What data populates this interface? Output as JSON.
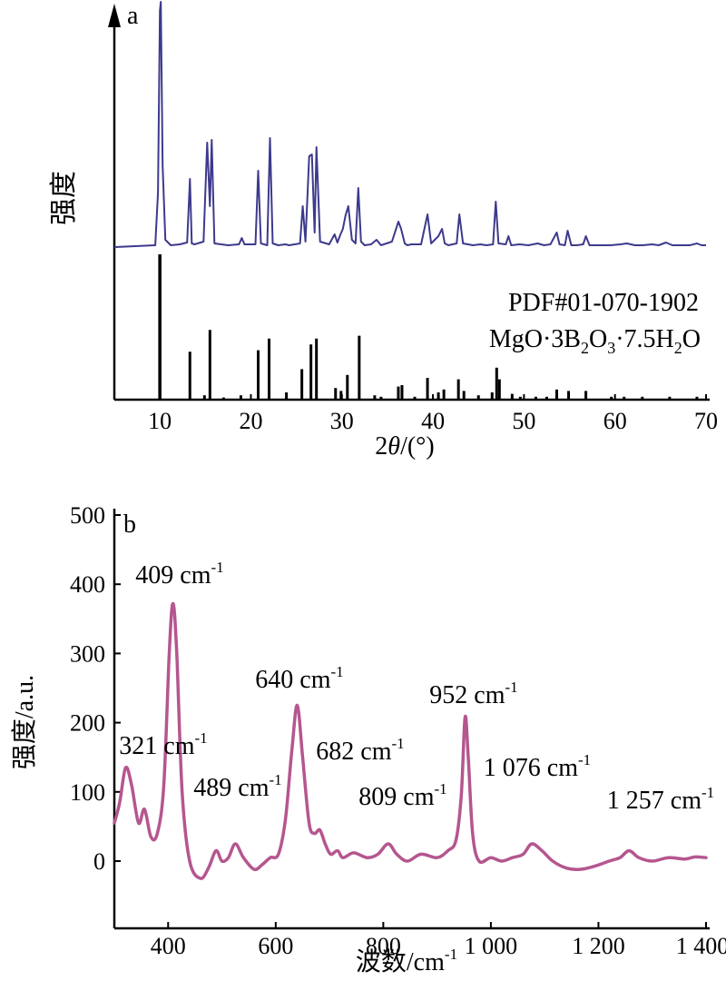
{
  "chart_data": [
    {
      "panel": "a",
      "type": "line",
      "xlabel_prefix": "2",
      "xlabel_var": "θ",
      "xlabel_suffix": "/(°)",
      "ylabel": "强度",
      "xlim": [
        5,
        70
      ],
      "xticks": [
        10,
        20,
        30,
        40,
        50,
        60,
        70
      ],
      "y_ticks_shown": false,
      "line_color": "#3d3a8c",
      "ref_color": "#000000",
      "series": [
        {
          "x": [
            5,
            9.5,
            9.8,
            10.0,
            10.1,
            10.3,
            10.6,
            11.2,
            12.2,
            13.0,
            13.3,
            13.5,
            13.8,
            14.8,
            15.2,
            15.5,
            15.7,
            16.0,
            17.5,
            18.7,
            19.0,
            19.3,
            20.5,
            20.8,
            21.1,
            21.8,
            22.1,
            22.4,
            23.0,
            23.8,
            24.2,
            25.4,
            25.7,
            26.0,
            26.4,
            26.7,
            27.0,
            27.2,
            27.6,
            28.6,
            29.2,
            29.5,
            29.8,
            30.1,
            30.4,
            30.7,
            31.1,
            31.5,
            31.8,
            32.1,
            32.5,
            33.2,
            33.8,
            34.3,
            35.5,
            36.2,
            36.5,
            36.9,
            37.2,
            37.6,
            38.7,
            39.4,
            39.8,
            40.6,
            41.0,
            41.3,
            41.7,
            42.6,
            42.9,
            43.3,
            44.4,
            45.2,
            45.9,
            46.6,
            46.9,
            47.2,
            48.0,
            48.3,
            48.6,
            49.5,
            50.5,
            51.5,
            52.2,
            52.9,
            53.6,
            53.9,
            54.5,
            54.8,
            55.2,
            55.8,
            56.5,
            56.8,
            57.2,
            58.0,
            59.5,
            60.6,
            61.3,
            62.2,
            63.0,
            64.1,
            64.8,
            65.6,
            66.3,
            67.0,
            68.2,
            69.0,
            69.5,
            70.0
          ],
          "y": [
            0,
            2,
            60,
            260,
            270,
            90,
            8,
            2,
            3,
            5,
            75,
            4,
            3,
            6,
            115,
            45,
            118,
            4,
            2,
            3,
            10,
            3,
            3,
            84,
            4,
            2,
            120,
            4,
            2,
            3,
            2,
            4,
            45,
            6,
            100,
            102,
            16,
            110,
            6,
            3,
            14,
            5,
            13,
            20,
            35,
            45,
            8,
            4,
            65,
            6,
            2,
            3,
            8,
            2,
            6,
            28,
            20,
            4,
            2,
            3,
            3,
            36,
            4,
            12,
            20,
            4,
            2,
            4,
            36,
            4,
            2,
            3,
            2,
            3,
            50,
            4,
            3,
            12,
            2,
            3,
            2,
            4,
            2,
            3,
            16,
            3,
            2,
            18,
            2,
            2,
            3,
            12,
            2,
            2,
            2,
            3,
            4,
            2,
            2,
            3,
            2,
            5,
            2,
            2,
            2,
            4,
            2,
            2
          ]
        }
      ],
      "reference": {
        "label_line1": "PDF#01-070-1902",
        "formula_parts": [
          "MgO·3B",
          "2",
          "O",
          "3",
          "·7.5H",
          "2",
          "O"
        ],
        "sticks": [
          [
            10.0,
            100
          ],
          [
            13.3,
            33
          ],
          [
            14.9,
            3
          ],
          [
            15.5,
            48
          ],
          [
            17.0,
            1.5
          ],
          [
            18.9,
            3
          ],
          [
            20.8,
            34
          ],
          [
            22.0,
            42
          ],
          [
            23.9,
            5
          ],
          [
            25.6,
            21
          ],
          [
            26.6,
            38
          ],
          [
            27.2,
            42
          ],
          [
            29.3,
            8
          ],
          [
            29.9,
            6
          ],
          [
            30.6,
            17
          ],
          [
            31.9,
            44
          ],
          [
            33.6,
            3
          ],
          [
            34.3,
            2
          ],
          [
            36.2,
            9
          ],
          [
            36.6,
            10
          ],
          [
            38.0,
            2
          ],
          [
            39.4,
            15
          ],
          [
            40.6,
            5
          ],
          [
            41.2,
            7
          ],
          [
            42.8,
            14
          ],
          [
            43.4,
            6
          ],
          [
            45.0,
            3
          ],
          [
            46.5,
            5
          ],
          [
            47.0,
            22
          ],
          [
            47.3,
            14
          ],
          [
            48.7,
            4
          ],
          [
            49.6,
            2
          ],
          [
            51.3,
            2
          ],
          [
            52.5,
            2
          ],
          [
            53.6,
            7
          ],
          [
            54.9,
            6
          ],
          [
            56.8,
            6
          ],
          [
            59.6,
            2
          ],
          [
            61.0,
            2
          ],
          [
            63.0,
            2
          ],
          [
            66.0,
            2
          ],
          [
            69.0,
            2
          ]
        ]
      }
    },
    {
      "panel": "b",
      "type": "line",
      "xlabel": "波数/cm",
      "xlabel_sup": "-1",
      "ylabel": "强度/a.u.",
      "xlim": [
        300,
        1400
      ],
      "ylim": [
        -30,
        500
      ],
      "xticks": [
        400,
        600,
        800,
        1000,
        1200,
        1400
      ],
      "xtick_labels": [
        "400",
        "600",
        "800",
        "1 000",
        "1 200",
        "1 400"
      ],
      "yticks": [
        0,
        100,
        200,
        300,
        400,
        500
      ],
      "line_color": "#b5568f",
      "series": [
        {
          "x": [
            300,
            310,
            321,
            332,
            345,
            356,
            368,
            380,
            392,
            402,
            409,
            416,
            426,
            440,
            460,
            475,
            489,
            500,
            512,
            525,
            540,
            560,
            575,
            590,
            605,
            618,
            630,
            640,
            650,
            662,
            672,
            682,
            692,
            702,
            715,
            725,
            745,
            770,
            790,
            809,
            825,
            845,
            870,
            900,
            920,
            935,
            945,
            952,
            958,
            966,
            978,
            1000,
            1020,
            1040,
            1060,
            1076,
            1095,
            1115,
            1140,
            1165,
            1190,
            1220,
            1240,
            1257,
            1275,
            1300,
            1330,
            1360,
            1380,
            1400
          ],
          "y": [
            55,
            85,
            135,
            110,
            55,
            75,
            35,
            40,
            110,
            300,
            372,
            300,
            100,
            0,
            -25,
            -10,
            15,
            0,
            5,
            25,
            5,
            -12,
            -5,
            5,
            10,
            60,
            160,
            225,
            150,
            55,
            40,
            45,
            25,
            10,
            15,
            5,
            12,
            5,
            10,
            25,
            10,
            0,
            10,
            5,
            15,
            30,
            95,
            208,
            150,
            40,
            0,
            5,
            0,
            5,
            10,
            25,
            15,
            0,
            -10,
            -12,
            -8,
            0,
            5,
            15,
            5,
            0,
            5,
            3,
            6,
            5
          ]
        }
      ],
      "annotations": [
        {
          "text": "321 cm",
          "sup": "-1"
        },
        {
          "text": "409 cm",
          "sup": "-1"
        },
        {
          "text": "489 cm",
          "sup": "-1"
        },
        {
          "text": "640 cm",
          "sup": "-1"
        },
        {
          "text": "682 cm",
          "sup": "-1"
        },
        {
          "text": "809 cm",
          "sup": "-1"
        },
        {
          "text": "952 cm",
          "sup": "-1"
        },
        {
          "text": "1 076 cm",
          "sup": "-1"
        },
        {
          "text": "1 257 cm",
          "sup": "-1"
        }
      ]
    }
  ]
}
